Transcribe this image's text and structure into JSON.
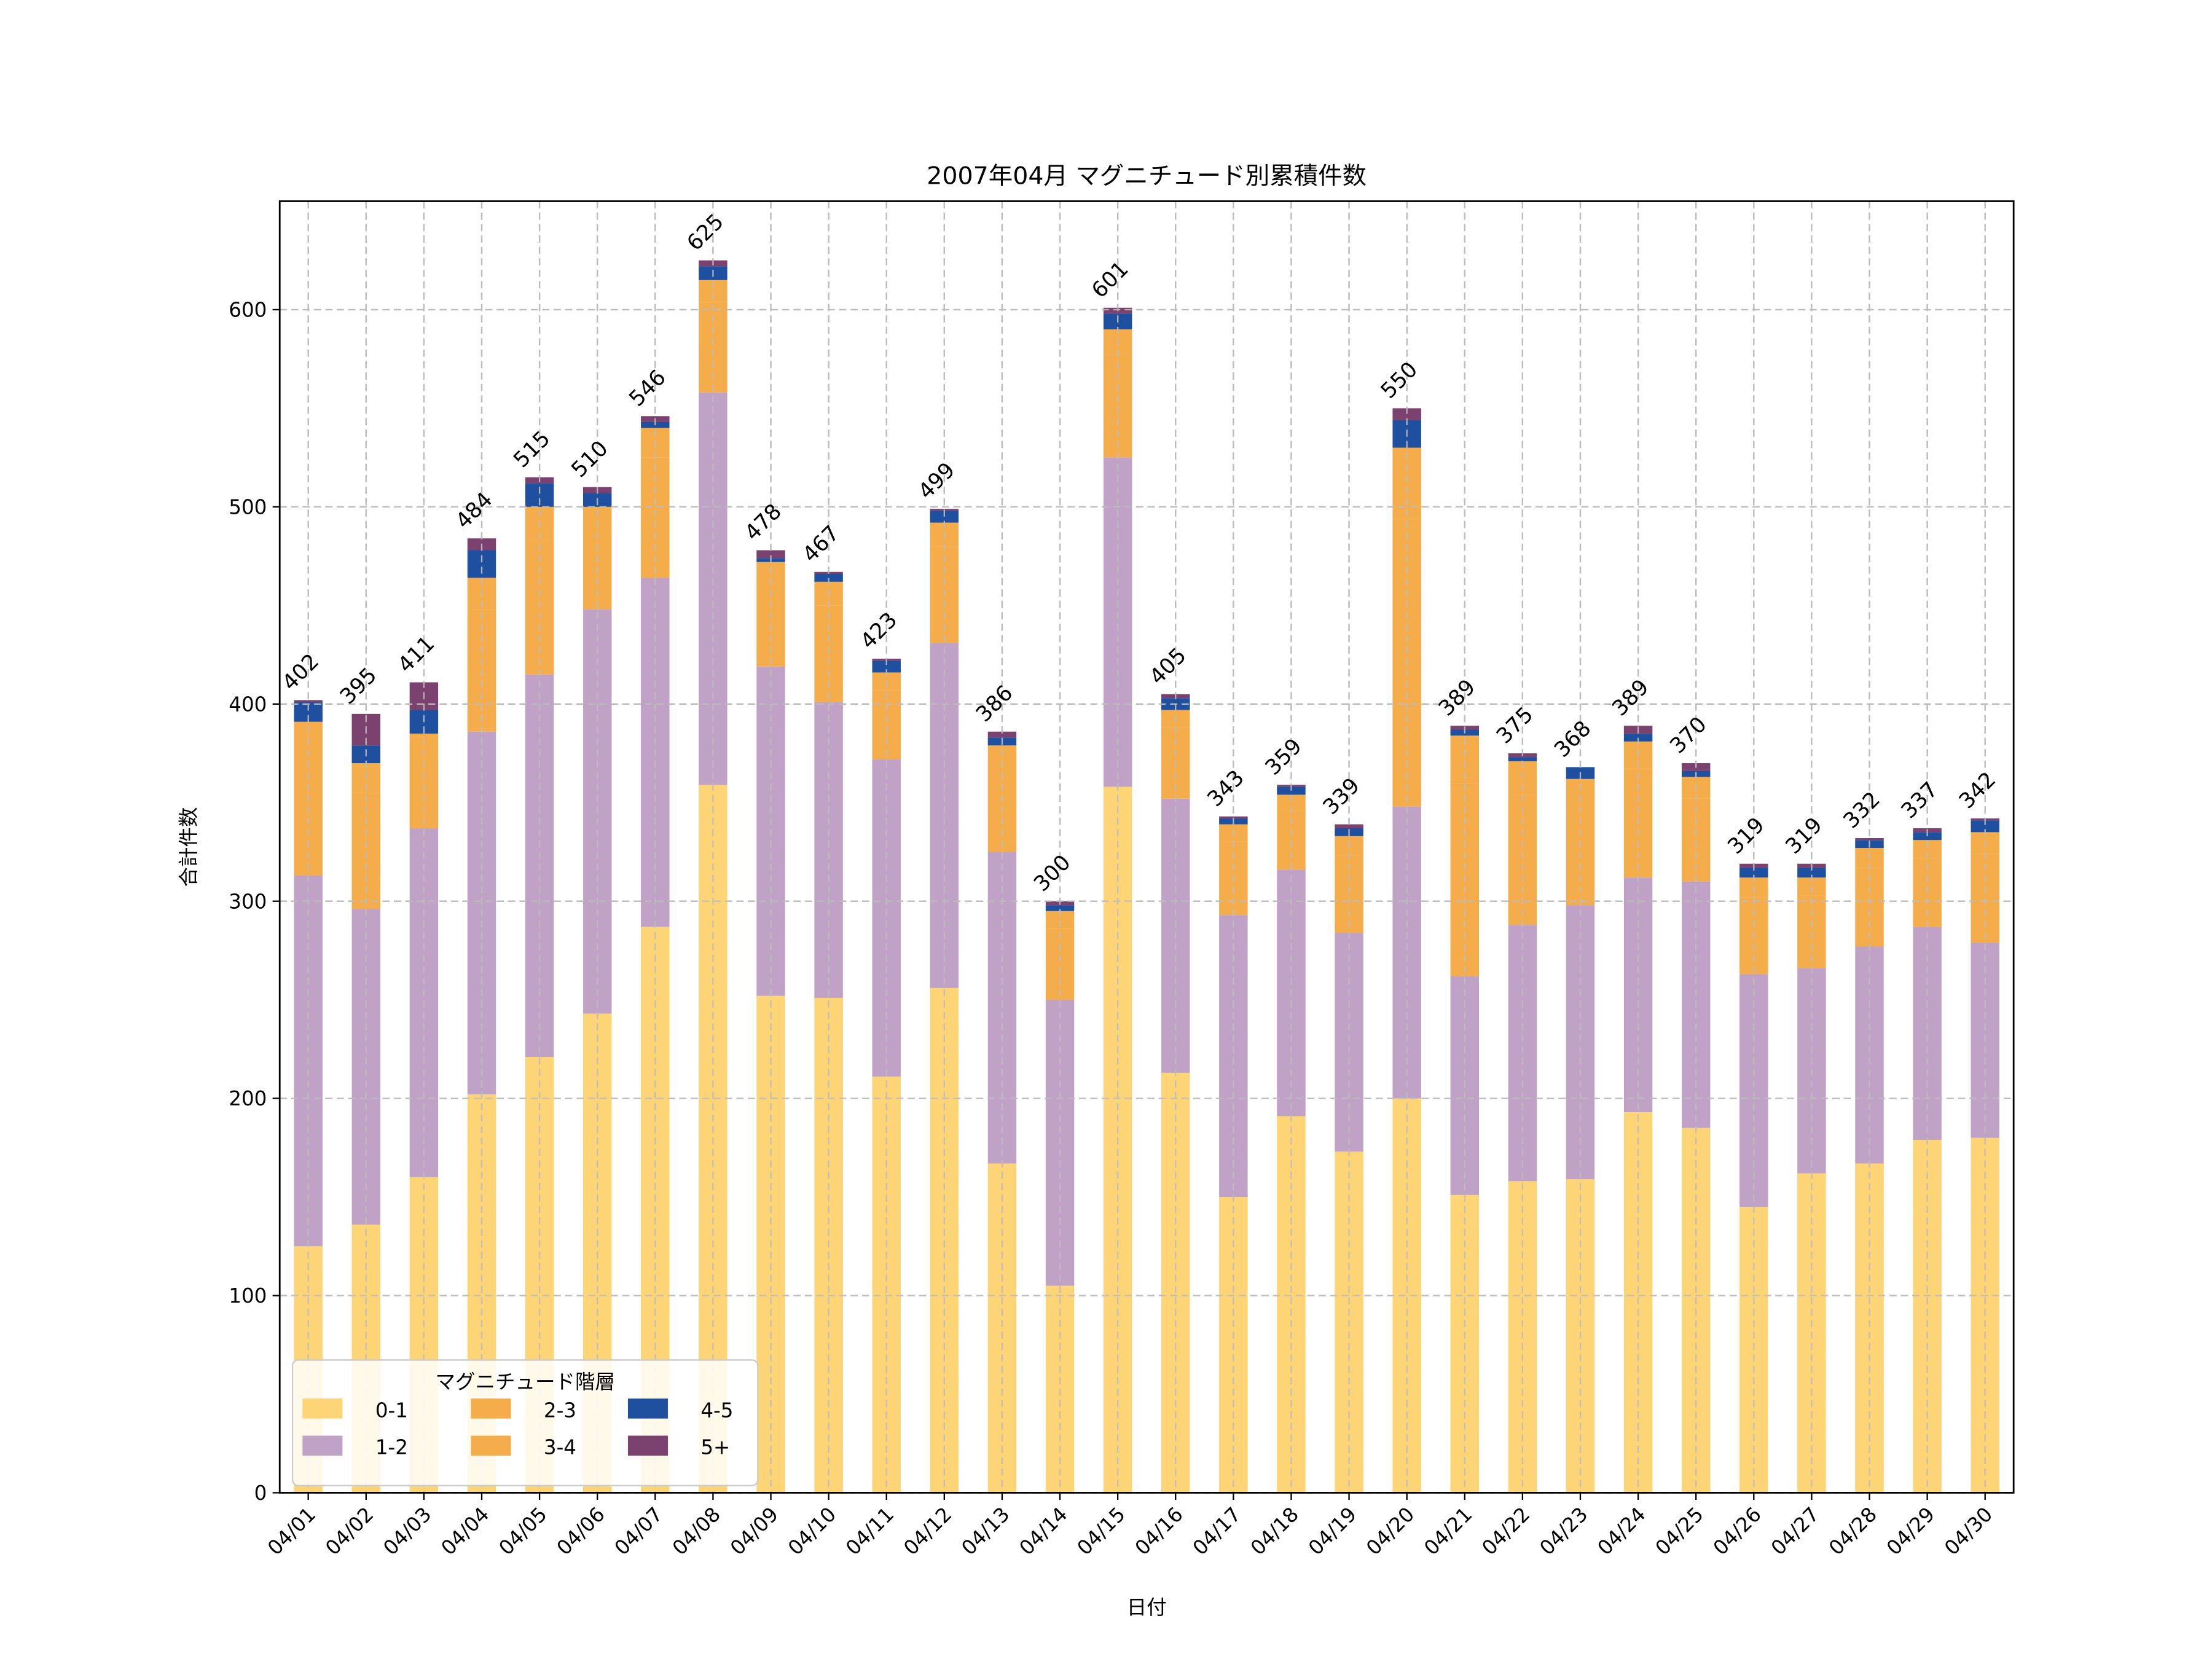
{
  "chart_data": {
    "type": "bar",
    "stacked": true,
    "title": "2007年04月 マグニチュード別累積件数",
    "xlabel": "日付",
    "ylabel": "合計件数",
    "ylim": [
      0,
      655
    ],
    "yticks": [
      0,
      100,
      200,
      300,
      400,
      500,
      600
    ],
    "grid": true,
    "legend": {
      "title": "マグニチュード階層",
      "placement": "lower-left",
      "columns": 3
    },
    "categories": [
      "04/01",
      "04/02",
      "04/03",
      "04/04",
      "04/05",
      "04/06",
      "04/07",
      "04/08",
      "04/09",
      "04/10",
      "04/11",
      "04/12",
      "04/13",
      "04/14",
      "04/15",
      "04/16",
      "04/17",
      "04/18",
      "04/19",
      "04/20",
      "04/21",
      "04/22",
      "04/23",
      "04/24",
      "04/25",
      "04/26",
      "04/27",
      "04/28",
      "04/29",
      "04/30"
    ],
    "series": [
      {
        "name": "0-1",
        "color": "#FDD476",
        "values": [
          125,
          136,
          160,
          202,
          221,
          243,
          287,
          359,
          252,
          251,
          211,
          256,
          167,
          105,
          358,
          213,
          150,
          191,
          173,
          200,
          151,
          158,
          159,
          193,
          185,
          145,
          162,
          167,
          179,
          180
        ]
      },
      {
        "name": "1-2",
        "color": "#C0A2C7",
        "values": [
          188,
          160,
          177,
          184,
          194,
          205,
          177,
          199,
          167,
          150,
          161,
          175,
          158,
          145,
          167,
          139,
          143,
          125,
          111,
          148,
          111,
          130,
          139,
          119,
          125,
          118,
          104,
          110,
          108,
          99
        ]
      },
      {
        "name": "2-3",
        "color": "#F5AC4B",
        "values": [
          62,
          59,
          38,
          62,
          68,
          42,
          61,
          46,
          42,
          49,
          35,
          49,
          43,
          36,
          52,
          36,
          37,
          30,
          39,
          146,
          98,
          66,
          51,
          55,
          42,
          39,
          37,
          40,
          35,
          45
        ]
      },
      {
        "name": "3-4",
        "color": "#F5AC4B",
        "values": [
          16,
          15,
          10,
          16,
          17,
          10,
          15,
          11,
          11,
          12,
          9,
          12,
          11,
          9,
          13,
          9,
          9,
          8,
          10,
          36,
          24,
          17,
          13,
          14,
          11,
          10,
          9,
          10,
          9,
          11
        ]
      },
      {
        "name": "4-5",
        "color": "#1F4F9F",
        "values": [
          10,
          9,
          12,
          14,
          12,
          7,
          3,
          7,
          2,
          4,
          6,
          6,
          4,
          3,
          8,
          6,
          3,
          4,
          4,
          14,
          3,
          2,
          6,
          4,
          3,
          5,
          5,
          4,
          4,
          6
        ]
      },
      {
        "name": "5+",
        "color": "#7B4270",
        "values": [
          1,
          16,
          14,
          6,
          3,
          3,
          3,
          3,
          4,
          1,
          1,
          1,
          3,
          2,
          3,
          2,
          1,
          1,
          2,
          6,
          2,
          2,
          0,
          4,
          4,
          2,
          2,
          1,
          2,
          1
        ]
      }
    ],
    "totals": [
      402,
      395,
      411,
      484,
      515,
      510,
      546,
      625,
      478,
      467,
      423,
      499,
      386,
      300,
      601,
      405,
      343,
      359,
      339,
      550,
      389,
      375,
      368,
      389,
      370,
      319,
      319,
      332,
      337,
      342
    ]
  }
}
